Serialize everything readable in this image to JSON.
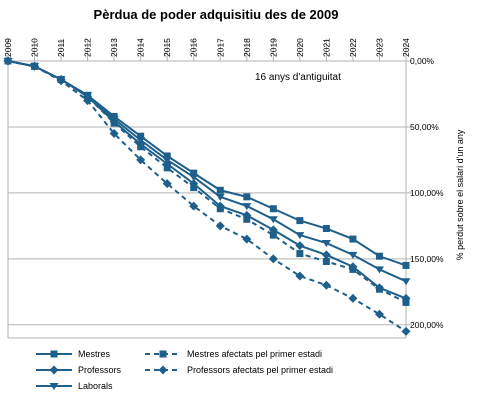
{
  "chart_data": {
    "type": "line",
    "title": "Pèrdua de poder adquisitiu des de 2009",
    "ylabel": "% perdut sobre el salari d'un any",
    "annotation": "16 anys d'antiguitat",
    "x": [
      "2009",
      "2010",
      "2011",
      "2012",
      "2013",
      "2014",
      "2015",
      "2016",
      "2017",
      "2018",
      "2019",
      "2020",
      "2021",
      "2022",
      "2023",
      "2024"
    ],
    "y_ticks": [
      "0,00%",
      "50,00%",
      "100,00%",
      "150,00%",
      "200,00%"
    ],
    "y_tick_values": [
      0,
      50,
      100,
      150,
      200
    ],
    "ylim": [
      0,
      210
    ],
    "y_inverted": true,
    "y_axis_position": "right",
    "grid": true,
    "legend_position": "bottom",
    "series": [
      {
        "name": "Mestres",
        "color": "#1f5f8b",
        "dashed": false,
        "marker": "square",
        "values": [
          0,
          4,
          14,
          26,
          42,
          57,
          72,
          85,
          98,
          103,
          112,
          121,
          127,
          135,
          148,
          155
        ]
      },
      {
        "name": "Mestres afectats pel primer estadi",
        "color": "#1f5f8b",
        "dashed": true,
        "marker": "square",
        "values": [
          0,
          4,
          14,
          27,
          47,
          65,
          81,
          96,
          112,
          120,
          132,
          146,
          152,
          158,
          173,
          183
        ]
      },
      {
        "name": "Professors",
        "color": "#1f5f8b",
        "dashed": false,
        "marker": "diamond",
        "values": [
          0,
          4,
          14,
          27,
          46,
          63,
          78,
          93,
          110,
          117,
          128,
          140,
          147,
          156,
          172,
          180
        ]
      },
      {
        "name": "Professors afectats pel primer estadi",
        "color": "#1f5f8b",
        "dashed": true,
        "marker": "diamond",
        "values": [
          0,
          4,
          15,
          30,
          55,
          75,
          93,
          110,
          125,
          135,
          150,
          163,
          170,
          180,
          192,
          205
        ]
      },
      {
        "name": "Laborals",
        "color": "#1f5f8b",
        "dashed": false,
        "marker": "triangle-down",
        "values": [
          0,
          4,
          14,
          26,
          44,
          60,
          75,
          88,
          103,
          110,
          120,
          132,
          138,
          147,
          158,
          167
        ]
      }
    ]
  }
}
